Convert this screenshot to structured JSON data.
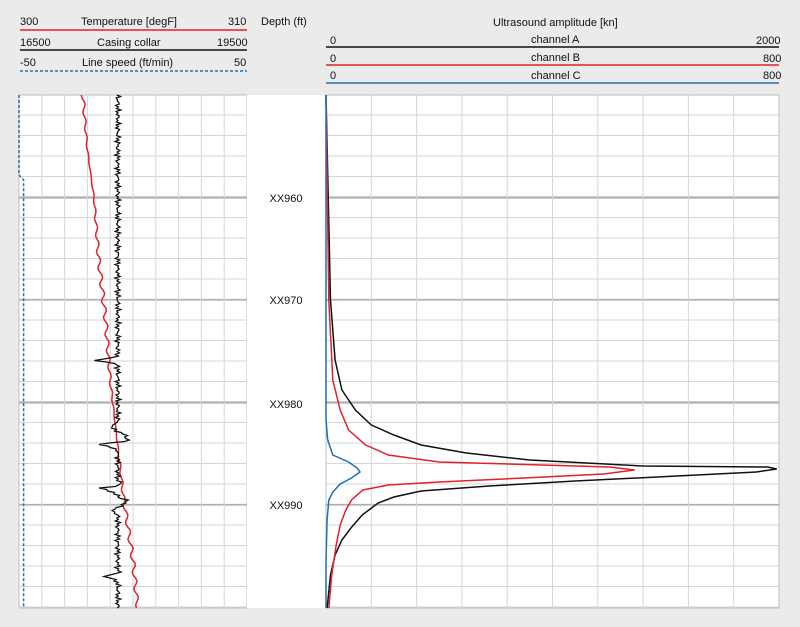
{
  "chart_data": {
    "type": "line",
    "left_track": {
      "curves": [
        {
          "name": "Temperature [degF]",
          "min_label": "300",
          "max_label": "310",
          "min": 300,
          "max": 310,
          "color": "#e0222a",
          "style": "solid",
          "points": [
            [
              302.8,
              95
            ],
            [
              303.0,
              150
            ],
            [
              303.3,
              200
            ],
            [
              303.5,
              260
            ],
            [
              303.8,
              320
            ],
            [
              304.0,
              380
            ],
            [
              304.3,
              440
            ],
            [
              304.6,
              500
            ],
            [
              305.0,
              560
            ],
            [
              305.2,
              608
            ]
          ]
        },
        {
          "name": "Casing collar",
          "min_label": "16500",
          "max_label": "19500",
          "min": 16500,
          "max": 19500,
          "color": "#111111",
          "style": "solid",
          "baseline": 17800
        },
        {
          "name": "Line speed (ft/min)",
          "min_label": "-50",
          "max_label": "50",
          "min": -50,
          "max": 50,
          "color": "#1f6fb5",
          "style": "dashed",
          "points": [
            [
              -50,
              95
            ],
            [
              -50,
              175
            ],
            [
              -48,
              180
            ],
            [
              -48,
              608
            ]
          ]
        }
      ]
    },
    "depth_track": {
      "title": "Depth (ft)",
      "labels": [
        "XX960",
        "XX970",
        "XX980",
        "XX990"
      ]
    },
    "right_track": {
      "title": "Ultrasound amplitude [kn]",
      "curves": [
        {
          "name": "channel A",
          "min_label": "0",
          "max_label": "2000",
          "min": 0,
          "max": 2000,
          "color": "#111111",
          "points": [
            [
              0,
              95
            ],
            [
              10,
              200
            ],
            [
              20,
              300
            ],
            [
              40,
              360
            ],
            [
              70,
              390
            ],
            [
              130,
              410
            ],
            [
              200,
              425
            ],
            [
              300,
              435
            ],
            [
              420,
              445
            ],
            [
              620,
              453
            ],
            [
              900,
              460
            ],
            [
              1400,
              466
            ],
            [
              1950,
              467
            ],
            [
              1990,
              469
            ],
            [
              1900,
              472
            ],
            [
              1550,
              476
            ],
            [
              1100,
              481
            ],
            [
              720,
              486
            ],
            [
              420,
              491
            ],
            [
              300,
              497
            ],
            [
              230,
              503
            ],
            [
              160,
              515
            ],
            [
              110,
              528
            ],
            [
              70,
              540
            ],
            [
              40,
              555
            ],
            [
              20,
              575
            ],
            [
              5,
              608
            ]
          ]
        },
        {
          "name": "channel B",
          "min_label": "0",
          "max_label": "800",
          "min": 0,
          "max": 800,
          "color": "#e0222a",
          "points": [
            [
              0,
              95
            ],
            [
              5,
              300
            ],
            [
              12,
              380
            ],
            [
              25,
              410
            ],
            [
              40,
              430
            ],
            [
              70,
              445
            ],
            [
              110,
              455
            ],
            [
              200,
              462
            ],
            [
              380,
              465
            ],
            [
              500,
              467
            ],
            [
              545,
              470
            ],
            [
              490,
              474
            ],
            [
              350,
              478
            ],
            [
              200,
              482
            ],
            [
              110,
              485
            ],
            [
              65,
              490
            ],
            [
              45,
              500
            ],
            [
              35,
              510
            ],
            [
              25,
              525
            ],
            [
              18,
              545
            ],
            [
              10,
              575
            ],
            [
              5,
              608
            ]
          ]
        },
        {
          "name": "channel C",
          "min_label": "0",
          "max_label": "800",
          "min": 0,
          "max": 800,
          "color": "#1f6fb5",
          "points": [
            [
              0,
              95
            ],
            [
              0,
              420
            ],
            [
              3,
              440
            ],
            [
              12,
              455
            ],
            [
              40,
              462
            ],
            [
              55,
              468
            ],
            [
              60,
              472
            ],
            [
              45,
              478
            ],
            [
              25,
              484
            ],
            [
              12,
              492
            ],
            [
              5,
              500
            ],
            [
              2,
              520
            ],
            [
              0,
              560
            ],
            [
              0,
              608
            ]
          ]
        }
      ]
    }
  }
}
